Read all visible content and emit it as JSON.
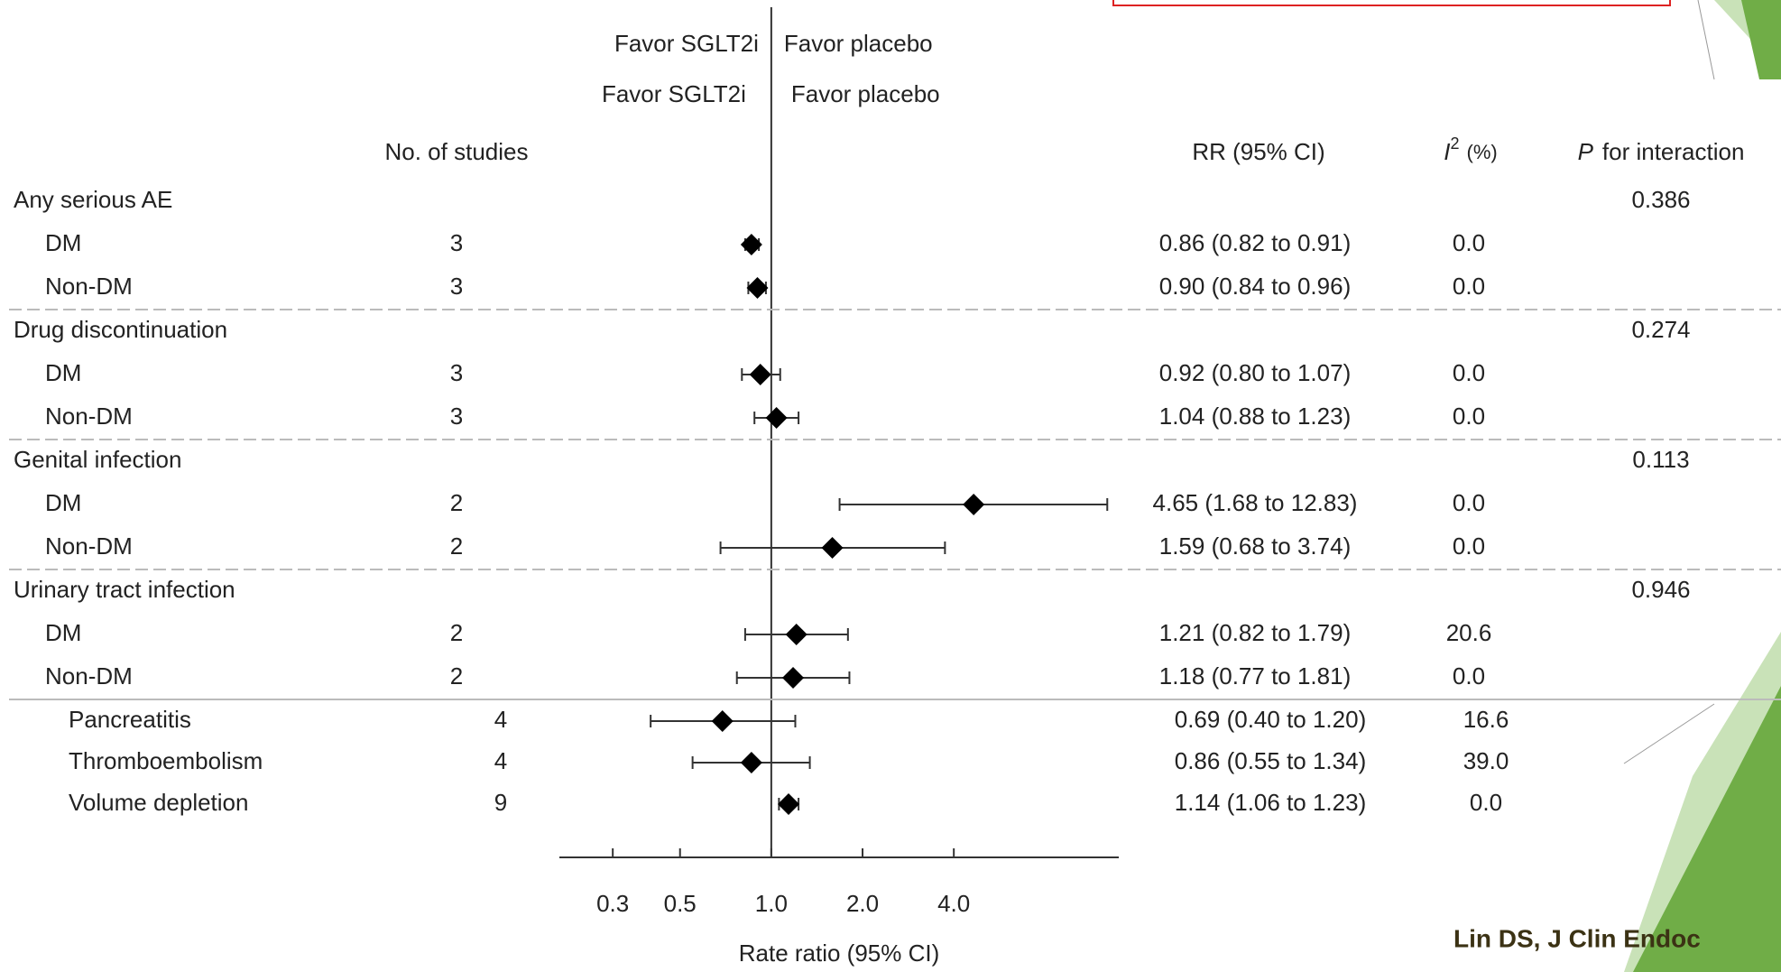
{
  "chart_data": {
    "type": "forest",
    "favor_rows": [
      {
        "left": "Favor SGLT2i",
        "right": "Favor placebo"
      },
      {
        "left": "Favor SGLT2i",
        "right": "Favor placebo"
      }
    ],
    "columns": {
      "studies": "No. of studies",
      "rr": "RR (95% CI)",
      "i2_symbol": "I",
      "i2_sup": "2",
      "i2_unit": "(%)",
      "p_symbol": "P",
      "p_text": "for interaction"
    },
    "subgroups": [
      {
        "label": "Any serious AE",
        "p": 0.386,
        "rows": [
          {
            "label": "DM",
            "studies": 3,
            "rr": 0.86,
            "lo": 0.82,
            "hi": 0.91,
            "ci_label": "0.86 (0.82 to 0.91)",
            "i2": "0.0"
          },
          {
            "label": "Non-DM",
            "studies": 3,
            "rr": 0.9,
            "lo": 0.84,
            "hi": 0.96,
            "ci_label": "0.90 (0.84 to 0.96)",
            "i2": "0.0"
          }
        ]
      },
      {
        "label": "Drug discontinuation",
        "p": 0.274,
        "rows": [
          {
            "label": "DM",
            "studies": 3,
            "rr": 0.92,
            "lo": 0.8,
            "hi": 1.07,
            "ci_label": "0.92 (0.80 to 1.07)",
            "i2": "0.0"
          },
          {
            "label": "Non-DM",
            "studies": 3,
            "rr": 1.04,
            "lo": 0.88,
            "hi": 1.23,
            "ci_label": "1.04 (0.88 to 1.23)",
            "i2": "0.0"
          }
        ]
      },
      {
        "label": "Genital infection",
        "p": 0.113,
        "rows": [
          {
            "label": "DM",
            "studies": 2,
            "rr": 4.65,
            "lo": 1.68,
            "hi": 12.83,
            "ci_label": "4.65 (1.68 to 12.83)",
            "i2": "0.0"
          },
          {
            "label": "Non-DM",
            "studies": 2,
            "rr": 1.59,
            "lo": 0.68,
            "hi": 3.74,
            "ci_label": "1.59 (0.68 to 3.74)",
            "i2": "0.0"
          }
        ]
      },
      {
        "label": "Urinary tract infection",
        "p": 0.946,
        "rows": [
          {
            "label": "DM",
            "studies": 2,
            "rr": 1.21,
            "lo": 0.82,
            "hi": 1.79,
            "ci_label": "1.21 (0.82 to 1.79)",
            "i2": "20.6"
          },
          {
            "label": "Non-DM",
            "studies": 2,
            "rr": 1.18,
            "lo": 0.77,
            "hi": 1.81,
            "ci_label": "1.18 (0.77 to 1.81)",
            "i2": "0.0"
          }
        ]
      }
    ],
    "outcomes": [
      {
        "label": "Pancreatitis",
        "studies": 4,
        "rr": 0.69,
        "lo": 0.4,
        "hi": 1.2,
        "ci_label": "0.69 (0.40 to 1.20)",
        "i2": "16.6"
      },
      {
        "label": "Thromboembolism",
        "studies": 4,
        "rr": 0.86,
        "lo": 0.55,
        "hi": 1.34,
        "ci_label": "0.86 (0.55 to 1.34)",
        "i2": "39.0"
      },
      {
        "label": "Volume depletion",
        "studies": 9,
        "rr": 1.14,
        "lo": 1.06,
        "hi": 1.23,
        "ci_label": "1.14 (1.06 to 1.23)",
        "i2": "0.0"
      }
    ],
    "x_label": "Rate ratio (95% CI)",
    "xscale": "log",
    "xlim": [
      0.2,
      14
    ],
    "xticks": [
      0.3,
      0.5,
      {
        "value": 1,
        "label": "1.0"
      },
      {
        "value": 2,
        "label": "2.0"
      },
      {
        "value": 4,
        "label": "4.0"
      }
    ],
    "marker_color": "#000000"
  },
  "citation": "Lin DS, J Clin Endoc"
}
